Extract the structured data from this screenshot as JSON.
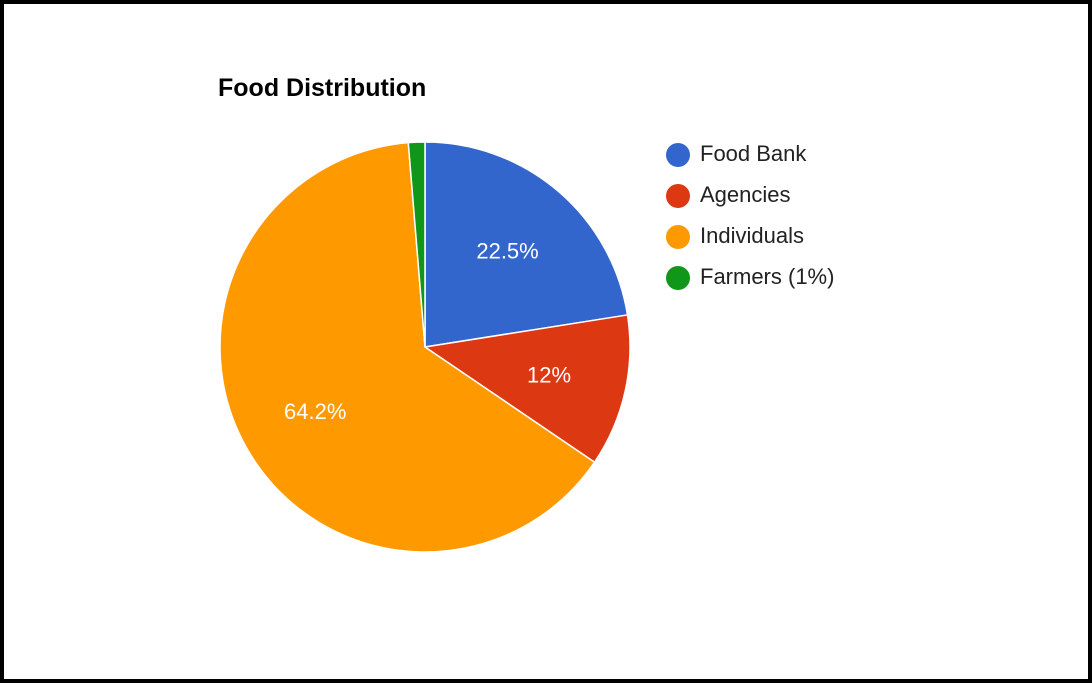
{
  "chart_data": {
    "type": "pie",
    "title": "Food Distribution",
    "slices": [
      {
        "label": "Food Bank",
        "value": 22.5,
        "display": "22.5%",
        "color": "#3366cc"
      },
      {
        "label": "Agencies",
        "value": 12,
        "display": "12%",
        "color": "#dc3912"
      },
      {
        "label": "Individuals",
        "value": 64.2,
        "display": "64.2%",
        "color": "#ff9900"
      },
      {
        "label": "Farmers (1%)",
        "value": 1.3,
        "display": "",
        "color": "#109618"
      }
    ],
    "legend_position": "right"
  }
}
